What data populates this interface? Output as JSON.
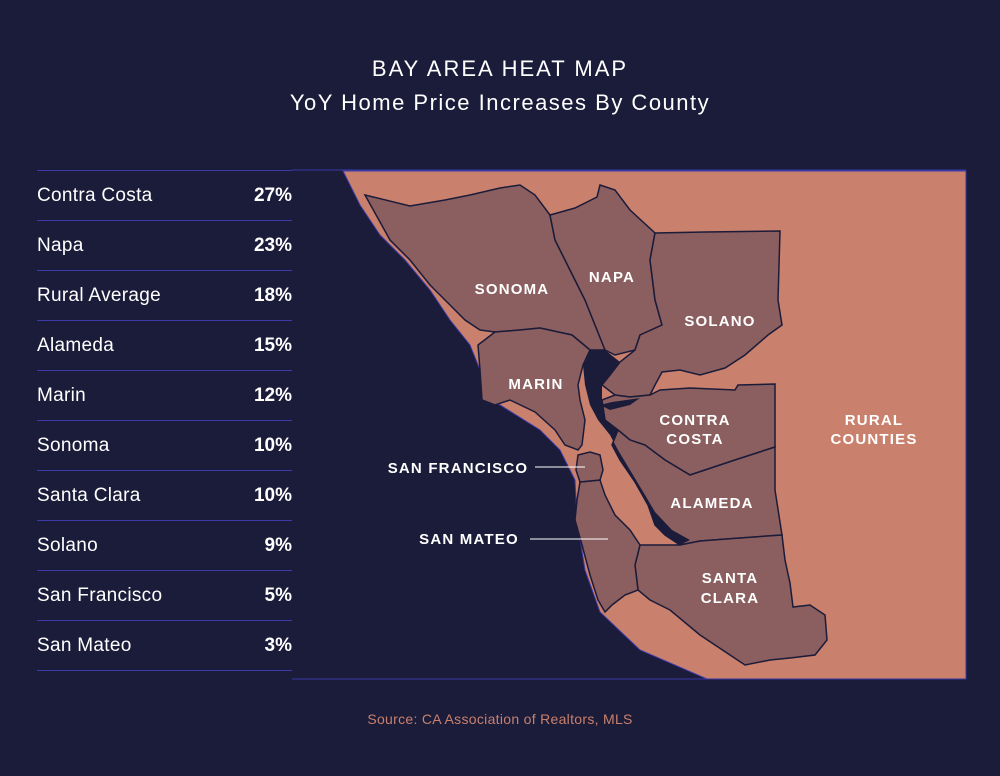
{
  "title": "BAY AREA HEAT MAP",
  "subtitle": "YoY Home Price Increases By County",
  "table": {
    "rows": [
      {
        "name": "Contra Costa",
        "value": "27%"
      },
      {
        "name": "Napa",
        "value": "23%"
      },
      {
        "name": "Rural Average",
        "value": "18%"
      },
      {
        "name": "Alameda",
        "value": "15%"
      },
      {
        "name": "Marin",
        "value": "12%"
      },
      {
        "name": "Sonoma",
        "value": "10%"
      },
      {
        "name": "Santa Clara",
        "value": "10%"
      },
      {
        "name": "Solano",
        "value": "9%"
      },
      {
        "name": "San Francisco",
        "value": "5%"
      },
      {
        "name": "San Mateo",
        "value": "3%"
      }
    ]
  },
  "map": {
    "labels": {
      "sonoma": "SONOMA",
      "napa": "NAPA",
      "solano": "SOLANO",
      "marin": "MARIN",
      "contra_costa_1": "CONTRA",
      "contra_costa_2": "COSTA",
      "alameda": "ALAMEDA",
      "santa_clara_1": "SANTA",
      "santa_clara_2": "CLARA",
      "rural_1": "RURAL",
      "rural_2": "COUNTIES",
      "san_francisco": "SAN FRANCISCO",
      "san_mateo": "SAN MATEO"
    },
    "colors": {
      "background": "#1b1b3a",
      "rural": "#c9806d",
      "county": "#8b5f5f",
      "border": "#1b1b3a",
      "frame": "#3a3aa8"
    }
  },
  "source": "Source: CA Association of Realtors, MLS"
}
